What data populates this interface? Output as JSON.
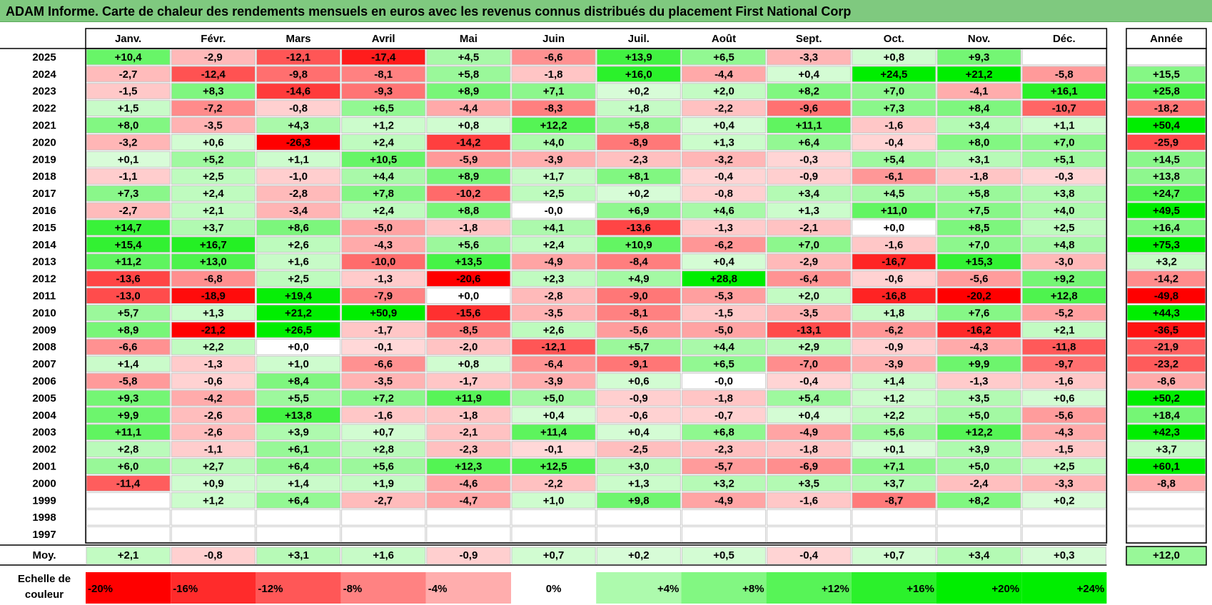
{
  "title": "ADAM Informe. Carte de chaleur des rendements mensuels en euros avec les revenus connus distribués du placement First National Corp",
  "chart_data": {
    "type": "heatmap",
    "columns": [
      "Janv.",
      "Févr.",
      "Mars",
      "Avril",
      "Mai",
      "Juin",
      "Juil.",
      "Août",
      "Sept.",
      "Oct.",
      "Nov.",
      "Déc."
    ],
    "year_header": "Année",
    "years": [
      "2025",
      "2024",
      "2023",
      "2022",
      "2021",
      "2020",
      "2019",
      "2018",
      "2017",
      "2016",
      "2015",
      "2014",
      "2013",
      "2012",
      "2011",
      "2010",
      "2009",
      "2008",
      "2007",
      "2006",
      "2005",
      "2004",
      "2003",
      "2002",
      "2001",
      "2000",
      "1999",
      "1998",
      "1997"
    ],
    "values": [
      [
        "+10,4",
        "-2,9",
        "-12,1",
        "-17,4",
        "+4,5",
        "-6,6",
        "+13,9",
        "+6,5",
        "-3,3",
        "+0,8",
        "+9,3",
        ""
      ],
      [
        "-2,7",
        "-12,4",
        "-9,8",
        "-8,1",
        "+5,8",
        "-1,8",
        "+16,0",
        "-4,4",
        "+0,4",
        "+24,5",
        "+21,2",
        "-5,8"
      ],
      [
        "-1,5",
        "+8,3",
        "-14,6",
        "-9,3",
        "+8,9",
        "+7,1",
        "+0,2",
        "+2,0",
        "+8,2",
        "+7,0",
        "-4,1",
        "+16,1"
      ],
      [
        "+1,5",
        "-7,2",
        "-0,8",
        "+6,5",
        "-4,4",
        "-8,3",
        "+1,8",
        "-2,2",
        "-9,6",
        "+7,3",
        "+8,4",
        "-10,7"
      ],
      [
        "+8,0",
        "-3,5",
        "+4,3",
        "+1,2",
        "+0,8",
        "+12,2",
        "+5,8",
        "+0,4",
        "+11,1",
        "-1,6",
        "+3,4",
        "+1,1"
      ],
      [
        "-3,2",
        "+0,6",
        "-26,3",
        "+2,4",
        "-14,2",
        "+4,0",
        "-8,9",
        "+1,3",
        "+6,4",
        "-0,4",
        "+8,0",
        "+7,0"
      ],
      [
        "+0,1",
        "+5,2",
        "+1,1",
        "+10,5",
        "-5,9",
        "-3,9",
        "-2,3",
        "-3,2",
        "-0,3",
        "+5,4",
        "+3,1",
        "+5,1"
      ],
      [
        "-1,1",
        "+2,5",
        "-1,0",
        "+4,4",
        "+8,9",
        "+1,7",
        "+8,1",
        "-0,4",
        "-0,9",
        "-6,1",
        "-1,8",
        "-0,3"
      ],
      [
        "+7,3",
        "+2,4",
        "-2,8",
        "+7,8",
        "-10,2",
        "+2,5",
        "+0,2",
        "-0,8",
        "+3,4",
        "+4,5",
        "+5,8",
        "+3,8"
      ],
      [
        "-2,7",
        "+2,1",
        "-3,4",
        "+2,4",
        "+8,8",
        "-0,0",
        "+6,9",
        "+4,6",
        "+1,3",
        "+11,0",
        "+7,5",
        "+4,0"
      ],
      [
        "+14,7",
        "+3,7",
        "+8,6",
        "-5,0",
        "-1,8",
        "+4,1",
        "-13,6",
        "-1,3",
        "-2,1",
        "+0,0",
        "+8,5",
        "+2,5"
      ],
      [
        "+15,4",
        "+16,7",
        "+2,6",
        "-4,3",
        "+5,6",
        "+2,4",
        "+10,9",
        "-6,2",
        "+7,0",
        "-1,6",
        "+7,0",
        "+4,8"
      ],
      [
        "+11,2",
        "+13,0",
        "+1,6",
        "-10,0",
        "+13,5",
        "-4,9",
        "-8,4",
        "+0,4",
        "-2,9",
        "-16,7",
        "+15,3",
        "-3,0"
      ],
      [
        "-13,6",
        "-6,8",
        "+2,5",
        "-1,3",
        "-20,6",
        "+2,3",
        "+4,9",
        "+28,8",
        "-6,4",
        "-0,6",
        "-5,6",
        "+9,2"
      ],
      [
        "-13,0",
        "-18,9",
        "+19,4",
        "-7,9",
        "+0,0",
        "-2,8",
        "-9,0",
        "-5,3",
        "+2,0",
        "-16,8",
        "-20,2",
        "+12,8"
      ],
      [
        "+5,7",
        "+1,3",
        "+21,2",
        "+50,9",
        "-15,6",
        "-3,5",
        "-8,1",
        "-1,5",
        "-3,5",
        "+1,8",
        "+7,6",
        "-5,2"
      ],
      [
        "+8,9",
        "-21,2",
        "+26,5",
        "-1,7",
        "-8,5",
        "+2,6",
        "-5,6",
        "-5,0",
        "-13,1",
        "-6,2",
        "-16,2",
        "+2,1"
      ],
      [
        "-6,6",
        "+2,2",
        "+0,0",
        "-0,1",
        "-2,0",
        "-12,1",
        "+5,7",
        "+4,4",
        "+2,9",
        "-0,9",
        "-4,3",
        "-11,8"
      ],
      [
        "+1,4",
        "-1,3",
        "+1,0",
        "-6,6",
        "+0,8",
        "-6,4",
        "-9,1",
        "+6,5",
        "-7,0",
        "-3,9",
        "+9,9",
        "-9,7"
      ],
      [
        "-5,8",
        "-0,6",
        "+8,4",
        "-3,5",
        "-1,7",
        "-3,9",
        "+0,6",
        "-0,0",
        "-0,4",
        "+1,4",
        "-1,3",
        "-1,6"
      ],
      [
        "+9,3",
        "-4,2",
        "+5,5",
        "+7,2",
        "+11,9",
        "+5,0",
        "-0,9",
        "-1,8",
        "+5,4",
        "+1,2",
        "+3,5",
        "+0,6"
      ],
      [
        "+9,9",
        "-2,6",
        "+13,8",
        "-1,6",
        "-1,8",
        "+0,4",
        "-0,6",
        "-0,7",
        "+0,4",
        "+2,2",
        "+5,0",
        "-5,6"
      ],
      [
        "+11,1",
        "-2,6",
        "+3,9",
        "+0,7",
        "-2,1",
        "+11,4",
        "+0,4",
        "+6,8",
        "-4,9",
        "+5,6",
        "+12,2",
        "-4,3"
      ],
      [
        "+2,8",
        "-1,1",
        "+6,1",
        "+2,8",
        "-2,3",
        "-0,1",
        "-2,5",
        "-2,3",
        "-1,8",
        "+0,1",
        "+3,9",
        "-1,5"
      ],
      [
        "+6,0",
        "+2,7",
        "+6,4",
        "+5,6",
        "+12,3",
        "+12,5",
        "+3,0",
        "-5,7",
        "-6,9",
        "+7,1",
        "+5,0",
        "+2,5"
      ],
      [
        "-11,4",
        "+0,9",
        "+1,4",
        "+1,9",
        "-4,6",
        "-2,2",
        "+1,3",
        "+3,2",
        "+3,5",
        "+3,7",
        "-2,4",
        "-3,3"
      ],
      [
        "",
        "+1,2",
        "+6,4",
        "-2,7",
        "-4,7",
        "+1,0",
        "+9,8",
        "-4,9",
        "-1,6",
        "-8,7",
        "+8,2",
        "+0,2"
      ],
      [
        "",
        "",
        "",
        "",
        "",
        "",
        "",
        "",
        "",
        "",
        "",
        ""
      ],
      [
        "",
        "",
        "",
        "",
        "",
        "",
        "",
        "",
        "",
        "",
        "",
        ""
      ]
    ],
    "annual": [
      "",
      "+15,5",
      "+25,8",
      "-18,2",
      "+50,4",
      "-25,9",
      "+14,5",
      "+13,8",
      "+24,7",
      "+49,5",
      "+16,4",
      "+75,3",
      "+3,2",
      "-14,2",
      "-49,8",
      "+44,3",
      "-36,5",
      "-21,9",
      "-23,2",
      "-8,6",
      "+50,2",
      "+18,4",
      "+42,3",
      "+3,7",
      "+60,1",
      "-8,8",
      "",
      "",
      ""
    ],
    "average_label": "Moy.",
    "averages": [
      "+2,1",
      "-0,8",
      "+3,1",
      "+1,6",
      "-0,9",
      "+0,7",
      "+0,2",
      "+0,5",
      "-0,4",
      "+0,7",
      "+3,4",
      "+0,3"
    ],
    "average_annual": "+12,0",
    "scale_label": [
      "Echelle de",
      "couleur"
    ],
    "scale": [
      "-20%",
      "-16%",
      "-12%",
      "-8%",
      "-4%",
      "0%",
      "+4%",
      "+8%",
      "+12%",
      "+16%",
      "+20%",
      "+24%"
    ],
    "colors": {
      "negative": "#ff0000",
      "positive": "#00ee00",
      "neutral": "#ffffff",
      "title_bg": "#7fc97f"
    }
  }
}
